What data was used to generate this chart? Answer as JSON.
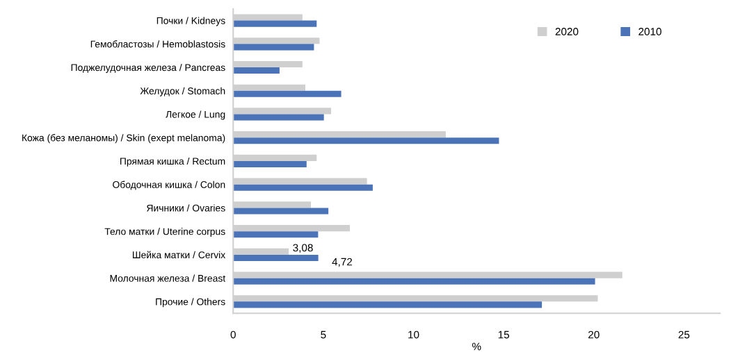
{
  "chart_data": {
    "type": "bar",
    "orientation": "horizontal",
    "xlabel": "%",
    "categories": [
      "Почки / Kidneys",
      "Гемобластозы / Hemoblastosis",
      "Поджелудочная железа / Pancreas",
      "Желудок / Stomach",
      "Легкое / Lung",
      "Кожа (без меланомы) / Skin (exept melanoma)",
      "Прямая кишка / Rectum",
      "Ободочная кишка / Colon",
      "Яичники / Ovaries",
      "Тело матки / Uterine corpus",
      "Шейка матки / Cervix",
      "Молочная железа / Breast",
      "Прочие / Others"
    ],
    "series": [
      {
        "name": "2020",
        "color": "#d0cfcf",
        "values": [
          3.84,
          4.79,
          3.84,
          4.0,
          5.43,
          11.79,
          4.63,
          7.42,
          4.31,
          6.47,
          3.08,
          21.58,
          20.22
        ],
        "value_labels": [
          null,
          null,
          null,
          null,
          null,
          null,
          null,
          null,
          null,
          null,
          "3,08",
          null,
          null
        ]
      },
      {
        "name": "2010",
        "color": "#4a73b8",
        "values": [
          4.63,
          4.48,
          2.57,
          5.99,
          5.03,
          14.74,
          4.07,
          7.74,
          5.28,
          4.71,
          4.72,
          20.07,
          17.12
        ],
        "value_labels": [
          null,
          null,
          null,
          null,
          null,
          null,
          null,
          null,
          null,
          null,
          "4,72",
          null,
          null
        ]
      }
    ],
    "xlim": [
      0,
      27
    ],
    "xticks": [
      0,
      5,
      10,
      15,
      20,
      25
    ],
    "grid": false,
    "legend": "top right"
  }
}
